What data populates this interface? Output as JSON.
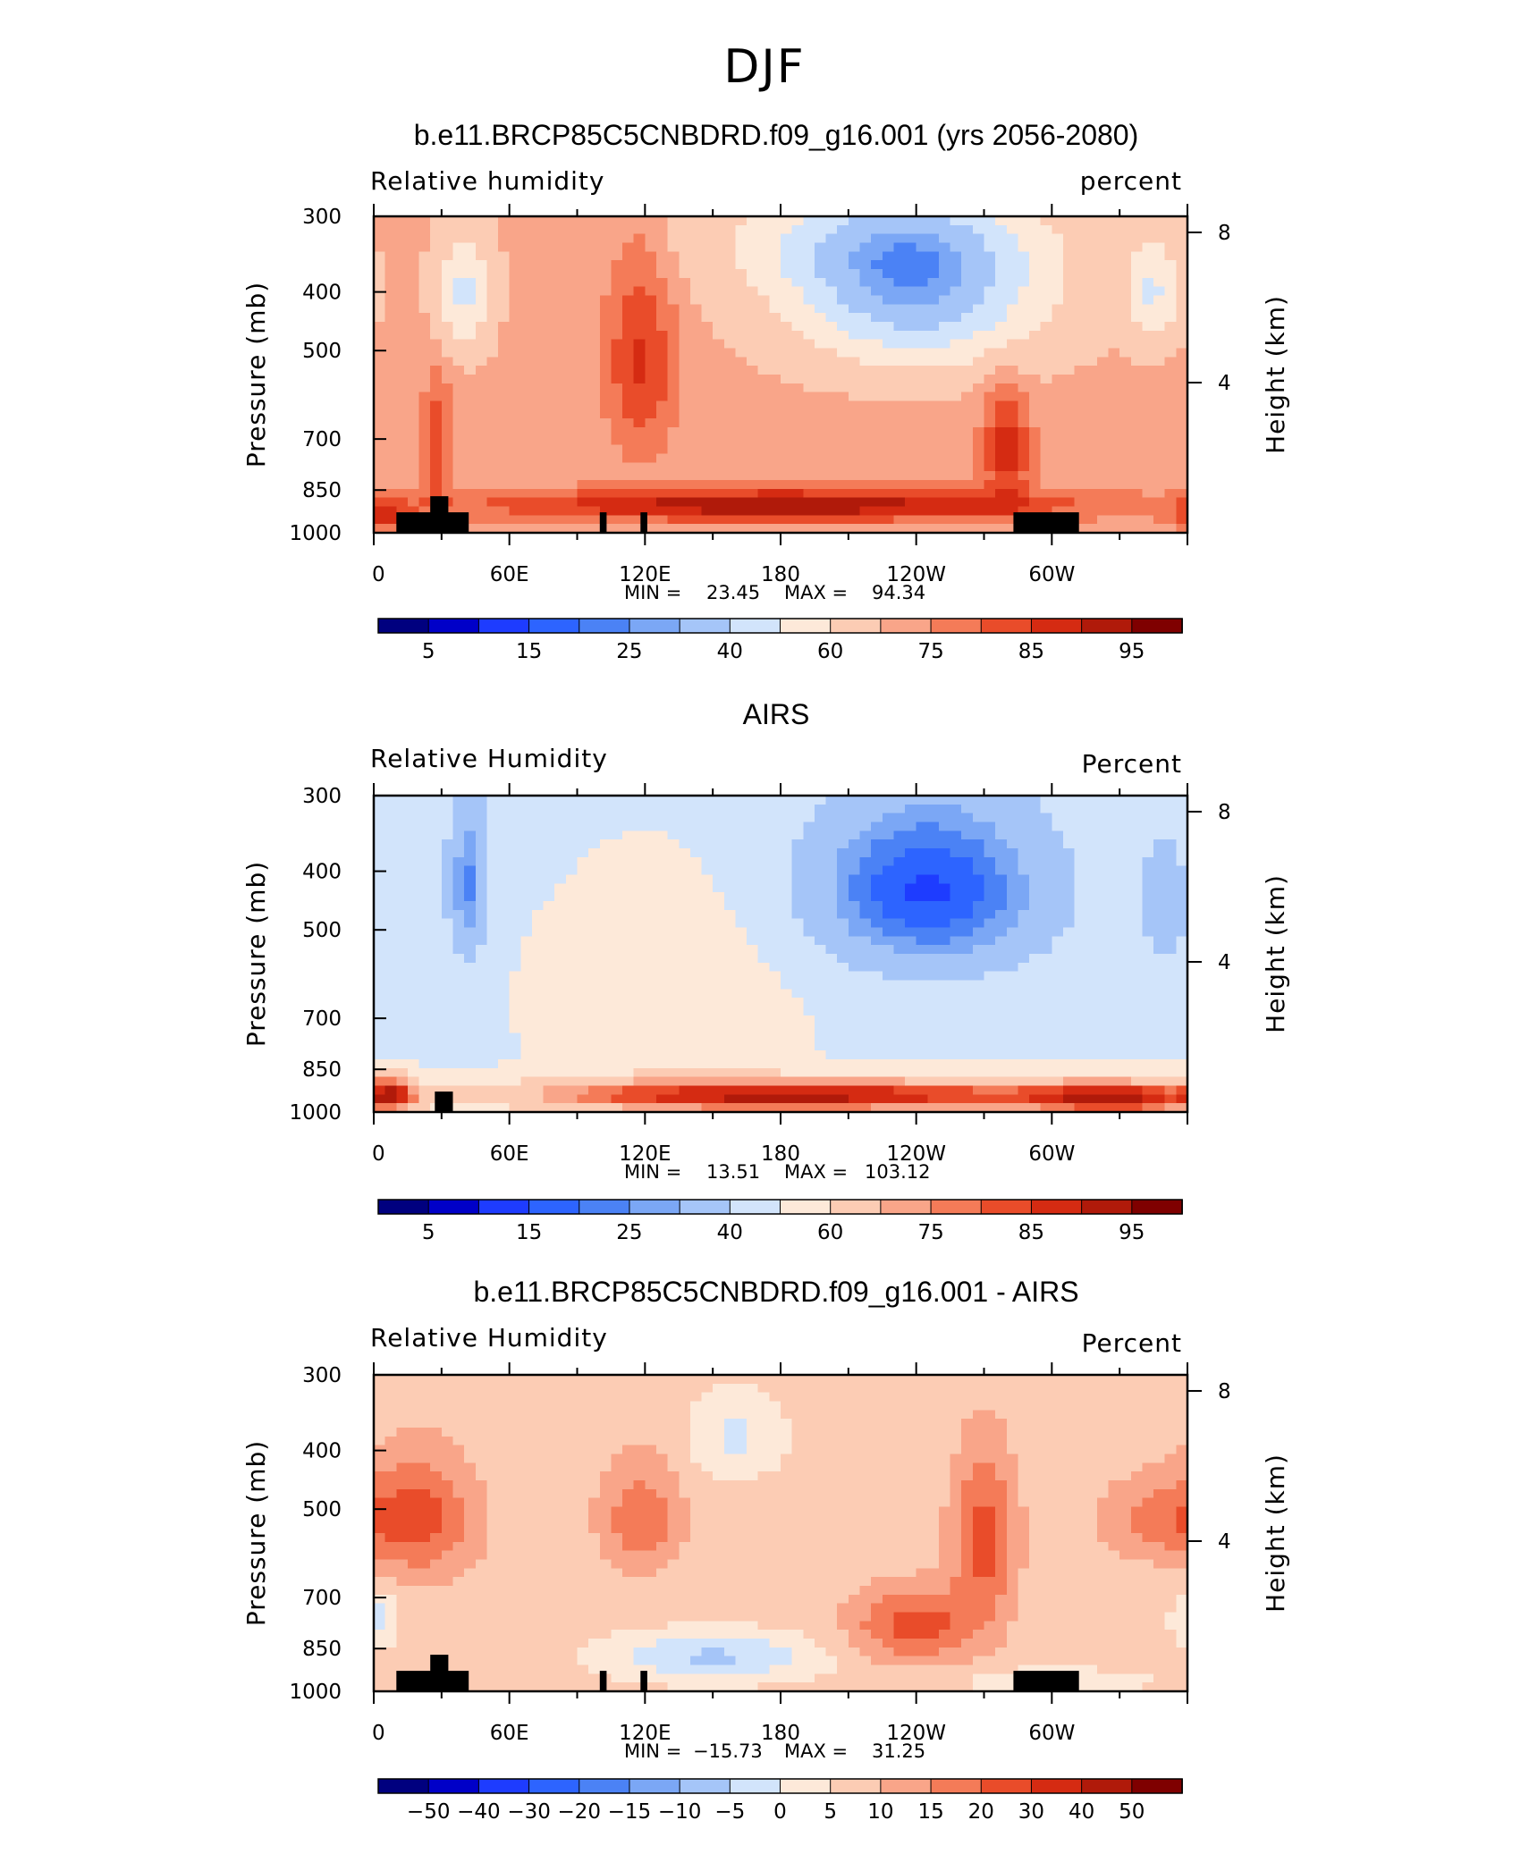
{
  "figure": {
    "title": "DJF"
  },
  "palette": {
    "lb_colors": [
      "#00007f",
      "#0000c8",
      "#1e3cff",
      "#2d64ff",
      "#4b82f5",
      "#7ba7f5",
      "#a5c5f8",
      "#d2e4fb",
      "#fde9d9",
      "#fcccb4",
      "#f9a589",
      "#f47b58",
      "#e94c2a",
      "#d52b12",
      "#b01a0a",
      "#7f0000"
    ],
    "terrain_color": "#000000"
  },
  "chart_data": [
    {
      "type": "heatmap",
      "title": "b.e11.BRCP85C5CNBDRD.f09_g16.001 (yrs 2056-2080)",
      "left_label": "Relative humidity",
      "right_label": "percent",
      "ylabel": "Pressure (mb)",
      "right_axis_label": "Height (km)",
      "x_ticks": [
        "0",
        "60E",
        "120E",
        "180",
        "120W",
        "60W"
      ],
      "y_ticks": [
        "300",
        "400",
        "500",
        "700",
        "850",
        "1000"
      ],
      "height_ticks": [
        "4",
        "8"
      ],
      "min_label": "MIN =",
      "min_value": "23.45",
      "max_label": "MAX =",
      "max_value": "94.34",
      "colorbar_labels": [
        "5",
        "15",
        "25",
        "40",
        "60",
        "75",
        "85",
        "95"
      ],
      "base": 72,
      "field": [
        {
          "lon": 40,
          "p": 400,
          "a": -24,
          "dx": 12,
          "dp": 90
        },
        {
          "lon": 240,
          "p": 400,
          "a": -40,
          "dx": 55,
          "dp": 120
        },
        {
          "lon": 220,
          "p": 330,
          "a": -18,
          "dx": 70,
          "dp": 70
        },
        {
          "lon": 345,
          "p": 400,
          "a": -22,
          "dx": 12,
          "dp": 80
        },
        {
          "lon": 118,
          "p": 520,
          "a": 14,
          "dx": 15,
          "dp": 200
        },
        {
          "lon": 28,
          "p": 720,
          "a": 12,
          "dx": 6,
          "dp": 180
        },
        {
          "lon": 280,
          "p": 720,
          "a": 16,
          "dx": 10,
          "dp": 170
        },
        {
          "lon": 180,
          "p": 900,
          "a": 22,
          "dx": 130,
          "dp": 55
        },
        {
          "lon": 5,
          "p": 930,
          "a": 14,
          "dx": 12,
          "dp": 60
        }
      ],
      "terrain": [
        {
          "lon": [
            10,
            42
          ],
          "p_top": 925
        },
        {
          "lon": [
            25,
            33
          ],
          "p_top": 870
        },
        {
          "lon": [
            100,
            103
          ],
          "p_top": 925
        },
        {
          "lon": [
            118,
            121
          ],
          "p_top": 925
        },
        {
          "lon": [
            283,
            312
          ],
          "p_top": 925
        }
      ]
    },
    {
      "type": "heatmap",
      "title": "AIRS",
      "left_label": "Relative Humidity",
      "right_label": "Percent",
      "ylabel": "Pressure (mb)",
      "right_axis_label": "Height (km)",
      "x_ticks": [
        "0",
        "60E",
        "120E",
        "180",
        "120W",
        "60W"
      ],
      "y_ticks": [
        "300",
        "400",
        "500",
        "700",
        "850",
        "1000"
      ],
      "height_ticks": [
        "4",
        "8"
      ],
      "min_label": "MIN =",
      "min_value": "13.51",
      "max_label": "MAX =",
      "max_value": "103.12",
      "colorbar_labels": [
        "5",
        "15",
        "25",
        "40",
        "60",
        "75",
        "85",
        "95"
      ],
      "base": 48,
      "field": [
        {
          "lon": 42,
          "p": 420,
          "a": -24,
          "dx": 10,
          "dp": 140
        },
        {
          "lon": 245,
          "p": 430,
          "a": -34,
          "dx": 55,
          "dp": 150
        },
        {
          "lon": 350,
          "p": 450,
          "a": -14,
          "dx": 12,
          "dp": 120
        },
        {
          "lon": 130,
          "p": 650,
          "a": 10,
          "dx": 55,
          "dp": 250
        },
        {
          "lon": 190,
          "p": 940,
          "a": 44,
          "dx": 140,
          "dp": 65
        },
        {
          "lon": 330,
          "p": 950,
          "a": 30,
          "dx": 40,
          "dp": 70
        },
        {
          "lon": 8,
          "p": 930,
          "a": 28,
          "dx": 10,
          "dp": 70
        }
      ],
      "terrain": [
        {
          "lon": [
            27,
            35
          ],
          "p_top": 925
        }
      ]
    },
    {
      "type": "heatmap",
      "title": "b.e11.BRCP85C5CNBDRD.f09_g16.001 - AIRS",
      "left_label": "Relative Humidity",
      "right_label": "Percent",
      "ylabel": "Pressure (mb)",
      "right_axis_label": "Height (km)",
      "x_ticks": [
        "0",
        "60E",
        "120E",
        "180",
        "120W",
        "60W"
      ],
      "y_ticks": [
        "300",
        "400",
        "500",
        "700",
        "850",
        "1000"
      ],
      "height_ticks": [
        "4",
        "8"
      ],
      "min_label": "MIN =",
      "min_value": "−15.73",
      "max_label": "MAX =",
      "max_value": "31.25",
      "colorbar_labels": [
        "−50",
        "−40",
        "−30",
        "−20",
        "−15",
        "−10",
        "−5",
        "0",
        "5",
        "10",
        "15",
        "20",
        "30",
        "40",
        "50"
      ],
      "base": 7,
      "field": [
        {
          "lon": 20,
          "p": 520,
          "a": 15,
          "dx": 25,
          "dp": 120
        },
        {
          "lon": 118,
          "p": 520,
          "a": 12,
          "dx": 18,
          "dp": 110
        },
        {
          "lon": 270,
          "p": 560,
          "a": 16,
          "dx": 14,
          "dp": 170
        },
        {
          "lon": 240,
          "p": 780,
          "a": 16,
          "dx": 28,
          "dp": 110
        },
        {
          "lon": 345,
          "p": 520,
          "a": 9,
          "dx": 25,
          "dp": 80
        },
        {
          "lon": 150,
          "p": 880,
          "a": -13,
          "dx": 45,
          "dp": 80
        },
        {
          "lon": 2,
          "p": 760,
          "a": -9,
          "dx": 8,
          "dp": 80
        },
        {
          "lon": 160,
          "p": 380,
          "a": -8,
          "dx": 20,
          "dp": 60
        },
        {
          "lon": 300,
          "p": 960,
          "a": -7,
          "dx": 40,
          "dp": 40
        }
      ],
      "terrain": [
        {
          "lon": [
            10,
            42
          ],
          "p_top": 925
        },
        {
          "lon": [
            25,
            33
          ],
          "p_top": 870
        },
        {
          "lon": [
            100,
            103
          ],
          "p_top": 925
        },
        {
          "lon": [
            118,
            121
          ],
          "p_top": 925
        },
        {
          "lon": [
            283,
            312
          ],
          "p_top": 925
        }
      ]
    }
  ]
}
